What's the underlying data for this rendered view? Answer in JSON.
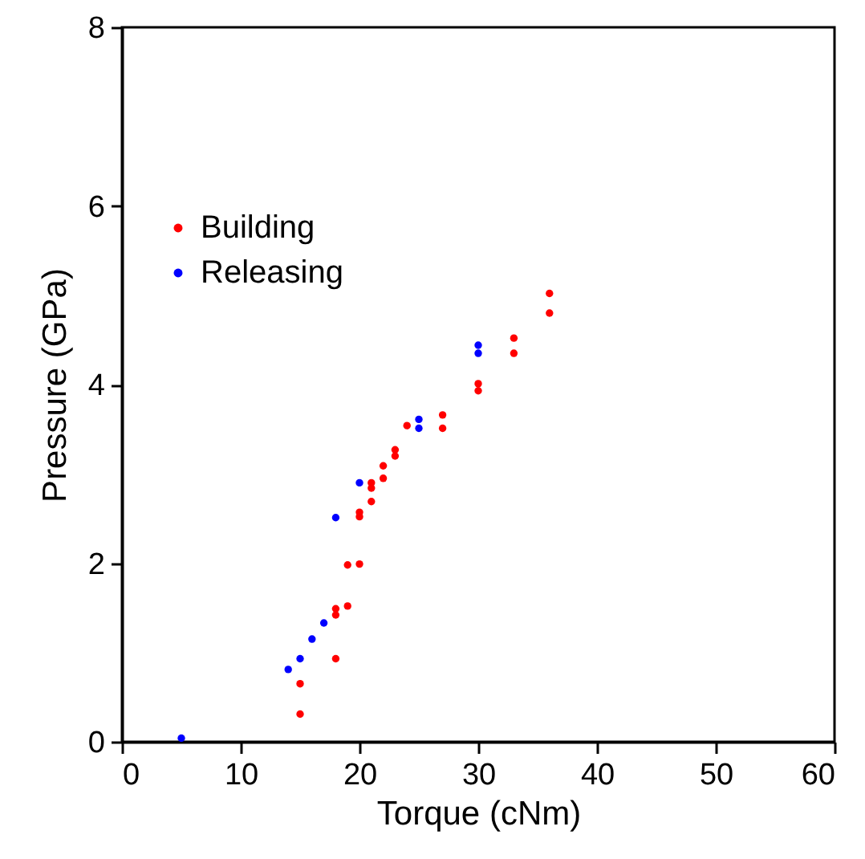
{
  "chart_data": {
    "type": "scatter",
    "xlabel": "Torque (cNm)",
    "ylabel": "Pressure (GPa)",
    "xlim": [
      0,
      60
    ],
    "xticks": [
      0,
      10,
      20,
      30,
      40,
      50,
      60
    ],
    "ylim": [
      0,
      8
    ],
    "yticks": [
      0,
      2,
      4,
      6,
      8
    ],
    "grid": false,
    "legend": "top left",
    "marker": "circle",
    "series": [
      {
        "name": "Building",
        "color": "#ff0000",
        "x": [
          36,
          36,
          33,
          33,
          30,
          30,
          27,
          27,
          24,
          23,
          23,
          22,
          22,
          21,
          21,
          21,
          20,
          20,
          19,
          20,
          19,
          18,
          18,
          18,
          15,
          15
        ],
        "values": [
          5.02,
          4.8,
          4.52,
          4.35,
          4.01,
          3.93,
          3.66,
          3.51,
          3.54,
          3.27,
          3.2,
          3.09,
          2.95,
          2.9,
          2.84,
          2.69,
          2.57,
          2.52,
          1.98,
          1.99,
          1.52,
          1.49,
          1.42,
          0.93,
          0.65,
          0.31
        ]
      },
      {
        "name": "Releasing",
        "color": "#0000ff",
        "x": [
          30,
          30,
          25,
          25,
          20,
          18,
          17,
          16,
          15,
          14,
          5
        ],
        "values": [
          4.44,
          4.35,
          3.61,
          3.51,
          2.9,
          2.51,
          1.33,
          1.15,
          0.93,
          0.81,
          0.04
        ]
      }
    ]
  }
}
